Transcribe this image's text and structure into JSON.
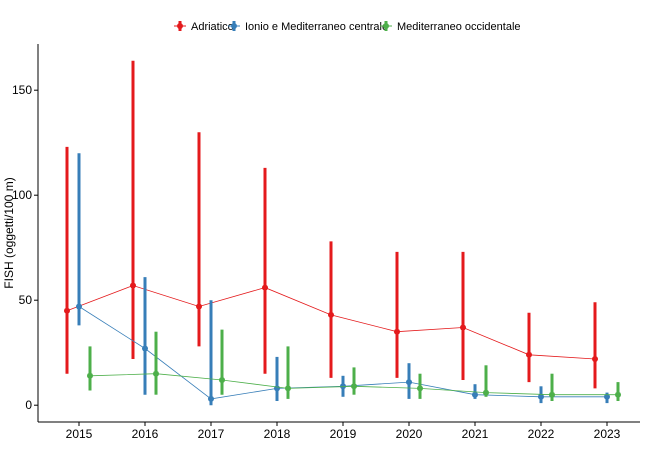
{
  "chart_data": {
    "type": "line",
    "title": "",
    "xlabel": "",
    "ylabel": "FISH (oggetti/100 m)",
    "categories": [
      "2015",
      "2016",
      "2017",
      "2018",
      "2019",
      "2020",
      "2021",
      "2022",
      "2023"
    ],
    "ylim": [
      -8,
      172
    ],
    "yticks": [
      0,
      50,
      100,
      150
    ],
    "grid": false,
    "legend_position": "top",
    "series": [
      {
        "name": "Adriatico",
        "color": "#e41a1c",
        "values": [
          45,
          57,
          47,
          56,
          43,
          35,
          37,
          24,
          22
        ],
        "lower": [
          15,
          22,
          28,
          15,
          13,
          13,
          12,
          11,
          8
        ],
        "upper": [
          123,
          164,
          130,
          113,
          78,
          73,
          73,
          44,
          49
        ]
      },
      {
        "name": "Ionio e Mediterraneo centrale",
        "color": "#377eb8",
        "values": [
          47,
          27,
          3,
          8,
          9,
          11,
          5,
          4,
          4
        ],
        "lower": [
          38,
          5,
          0,
          2,
          4,
          3,
          3,
          1,
          1
        ],
        "upper": [
          120,
          61,
          50,
          23,
          14,
          20,
          10,
          9,
          6
        ]
      },
      {
        "name": "Mediterraneo occidentale",
        "color": "#4daf4a",
        "values": [
          14,
          15,
          12,
          8,
          9,
          8,
          6,
          5,
          5
        ],
        "lower": [
          7,
          5,
          5,
          3,
          5,
          3,
          4,
          2,
          2
        ],
        "upper": [
          28,
          35,
          36,
          28,
          18,
          15,
          19,
          15,
          11
        ]
      }
    ]
  }
}
